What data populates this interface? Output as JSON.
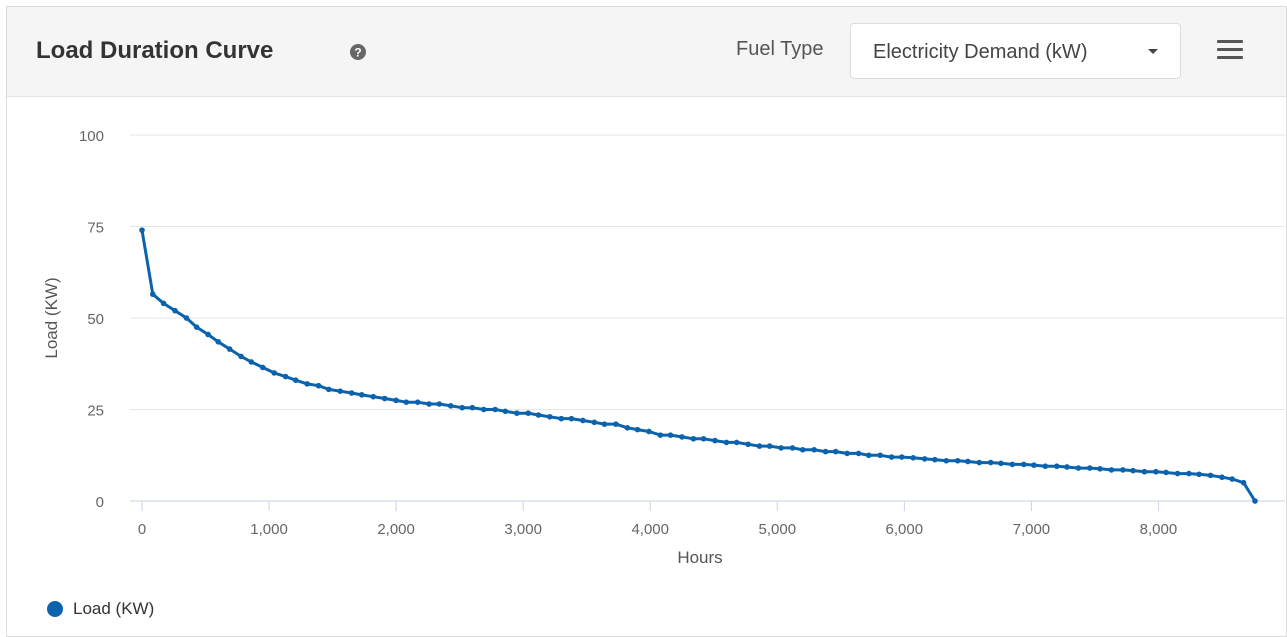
{
  "header": {
    "title": "Load Duration Curve",
    "help_icon": "question-circle-icon",
    "fuel_label": "Fuel Type",
    "fuel_selected": "Electricity Demand (kW)",
    "menu_icon": "hamburger-menu-icon"
  },
  "legend": {
    "label": "Load (KW)",
    "color": "#0b63ad"
  },
  "chart_data": {
    "type": "line",
    "title": "",
    "xlabel": "Hours",
    "ylabel": "Load (KW)",
    "xlim": [
      0,
      8760
    ],
    "ylim": [
      0,
      100
    ],
    "x_ticks": [
      "0",
      "1,000",
      "2,000",
      "3,000",
      "4,000",
      "5,000",
      "6,000",
      "7,000",
      "8,000"
    ],
    "y_ticks": [
      "0",
      "25",
      "50",
      "75",
      "100"
    ],
    "grid": true,
    "legend_position": "bottom-left",
    "series": [
      {
        "name": "Load (KW)",
        "color": "#0b63ad",
        "points": [
          [
            0,
            74
          ],
          [
            85,
            56.5
          ],
          [
            170,
            54
          ],
          [
            260,
            52
          ],
          [
            350,
            50
          ],
          [
            430,
            47.5
          ],
          [
            520,
            45.5
          ],
          [
            600,
            43.5
          ],
          [
            690,
            41.5
          ],
          [
            780,
            39.5
          ],
          [
            860,
            38
          ],
          [
            950,
            36.5
          ],
          [
            1040,
            35
          ],
          [
            1130,
            34
          ],
          [
            1210,
            33
          ],
          [
            1300,
            32
          ],
          [
            1390,
            31.5
          ],
          [
            1470,
            30.5
          ],
          [
            1560,
            30
          ],
          [
            1650,
            29.5
          ],
          [
            1730,
            29
          ],
          [
            1820,
            28.5
          ],
          [
            1910,
            28
          ],
          [
            2000,
            27.5
          ],
          [
            2080,
            27
          ],
          [
            2170,
            27
          ],
          [
            2260,
            26.5
          ],
          [
            2340,
            26.5
          ],
          [
            2430,
            26
          ],
          [
            2520,
            25.5
          ],
          [
            2600,
            25.5
          ],
          [
            2690,
            25
          ],
          [
            2780,
            25
          ],
          [
            2860,
            24.5
          ],
          [
            2950,
            24
          ],
          [
            3040,
            24
          ],
          [
            3120,
            23.5
          ],
          [
            3210,
            23
          ],
          [
            3300,
            22.5
          ],
          [
            3380,
            22.5
          ],
          [
            3470,
            22
          ],
          [
            3560,
            21.5
          ],
          [
            3640,
            21
          ],
          [
            3730,
            21
          ],
          [
            3820,
            20
          ],
          [
            3900,
            19.5
          ],
          [
            3990,
            19
          ],
          [
            4080,
            18
          ],
          [
            4160,
            18
          ],
          [
            4250,
            17.5
          ],
          [
            4340,
            17
          ],
          [
            4420,
            17
          ],
          [
            4510,
            16.5
          ],
          [
            4600,
            16
          ],
          [
            4680,
            16
          ],
          [
            4770,
            15.5
          ],
          [
            4860,
            15
          ],
          [
            4940,
            15
          ],
          [
            5030,
            14.5
          ],
          [
            5120,
            14.5
          ],
          [
            5200,
            14
          ],
          [
            5290,
            14
          ],
          [
            5380,
            13.5
          ],
          [
            5460,
            13.5
          ],
          [
            5550,
            13
          ],
          [
            5640,
            13
          ],
          [
            5720,
            12.5
          ],
          [
            5810,
            12.5
          ],
          [
            5900,
            12
          ],
          [
            5980,
            12
          ],
          [
            6070,
            11.8
          ],
          [
            6160,
            11.5
          ],
          [
            6240,
            11.3
          ],
          [
            6330,
            11
          ],
          [
            6420,
            11
          ],
          [
            6500,
            10.8
          ],
          [
            6590,
            10.5
          ],
          [
            6680,
            10.5
          ],
          [
            6760,
            10.3
          ],
          [
            6850,
            10
          ],
          [
            6940,
            10
          ],
          [
            7020,
            9.8
          ],
          [
            7110,
            9.5
          ],
          [
            7200,
            9.5
          ],
          [
            7280,
            9.3
          ],
          [
            7370,
            9
          ],
          [
            7460,
            9
          ],
          [
            7540,
            8.8
          ],
          [
            7630,
            8.5
          ],
          [
            7720,
            8.5
          ],
          [
            7800,
            8.3
          ],
          [
            7890,
            8
          ],
          [
            7980,
            8
          ],
          [
            8060,
            7.8
          ],
          [
            8150,
            7.5
          ],
          [
            8240,
            7.5
          ],
          [
            8320,
            7.3
          ],
          [
            8410,
            7
          ],
          [
            8500,
            6.5
          ],
          [
            8580,
            6
          ],
          [
            8670,
            5
          ],
          [
            8760,
            0
          ]
        ]
      }
    ]
  }
}
